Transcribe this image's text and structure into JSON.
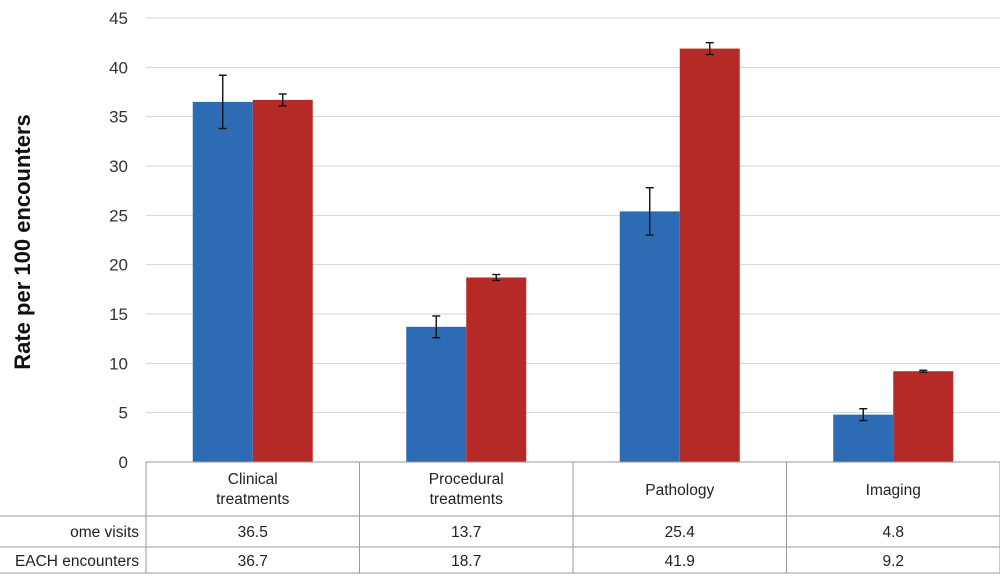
{
  "chart_data": {
    "type": "bar",
    "ylabel": "Rate per 100 encounters",
    "ylim": [
      0,
      45
    ],
    "yticks": [
      0,
      5,
      10,
      15,
      20,
      25,
      30,
      35,
      40,
      45
    ],
    "grid": true,
    "categories": [
      [
        "Clinical",
        "treatments"
      ],
      [
        "Procedural",
        "treatments"
      ],
      [
        "Pathology"
      ],
      [
        "Imaging"
      ]
    ],
    "series": [
      {
        "name": "ome visits",
        "color": "#2e6bb5",
        "values": [
          36.5,
          13.7,
          25.4,
          4.8
        ],
        "error": [
          2.7,
          1.1,
          2.4,
          0.6
        ],
        "labels": [
          "36.5",
          "13.7",
          "25.4",
          "4.8"
        ]
      },
      {
        "name": "EACH encounters",
        "color": "#b52a26",
        "values": [
          36.7,
          18.7,
          41.9,
          9.2
        ],
        "error": [
          0.6,
          0.3,
          0.6,
          0.1
        ],
        "labels": [
          "36.7",
          "18.7",
          "41.9",
          "9.2"
        ]
      }
    ]
  }
}
